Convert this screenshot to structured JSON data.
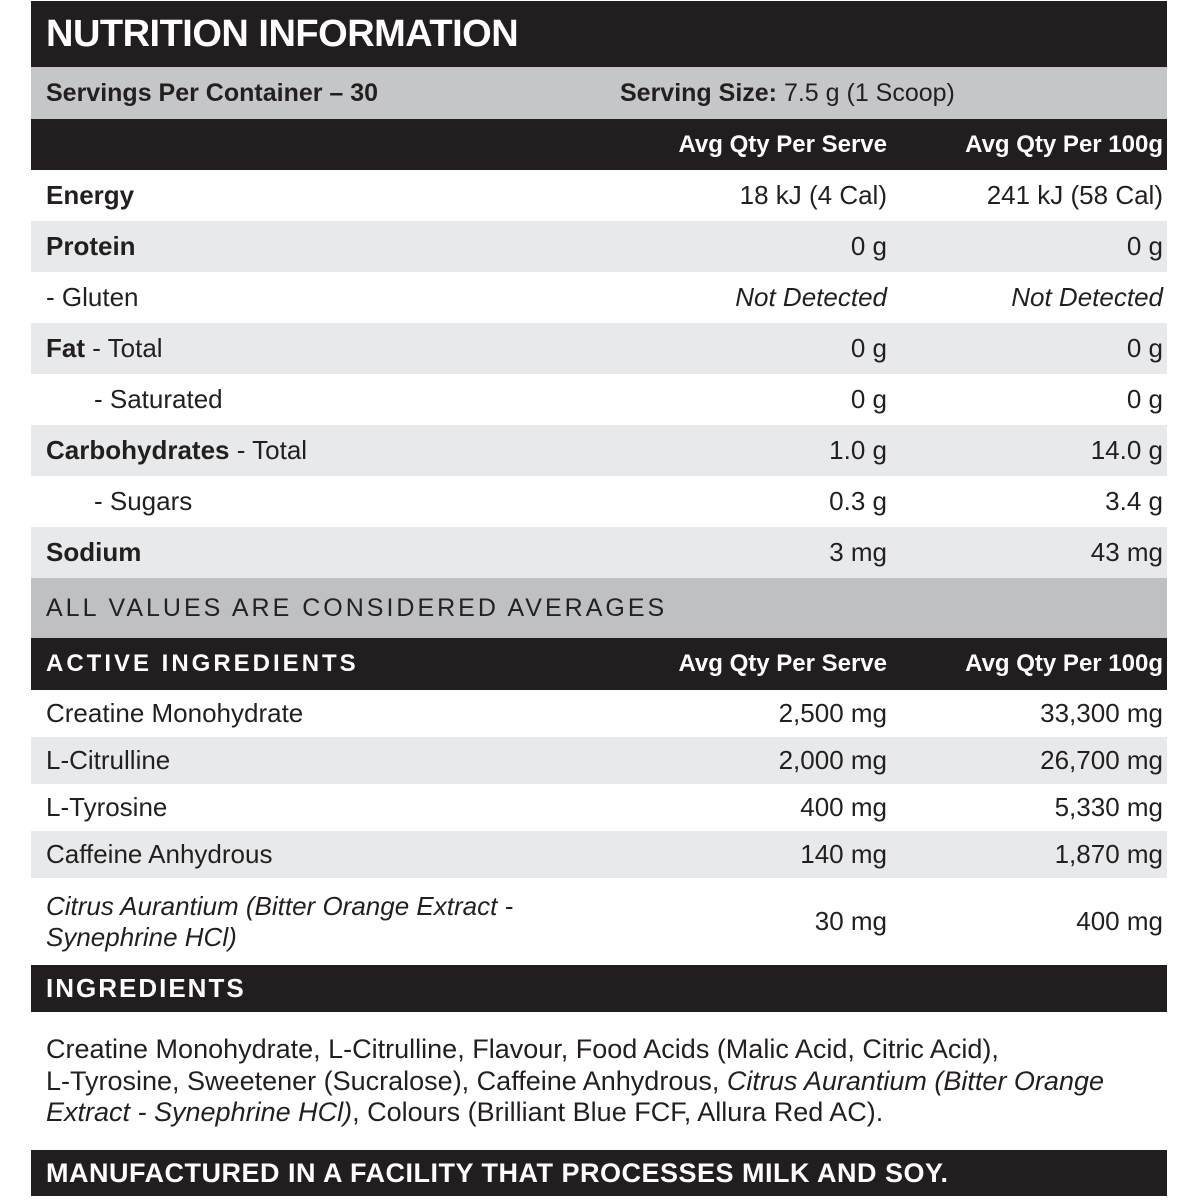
{
  "title": "NUTRITION INFORMATION",
  "servings": {
    "per_container": "Servings Per Container – 30",
    "size_label": "Serving Size:",
    "size_value": " 7.5 g (1 Scoop)"
  },
  "columns": {
    "serve": "Avg Qty Per Serve",
    "per100g": "Avg Qty Per 100g"
  },
  "nutrition": {
    "rows": [
      {
        "bold": "Energy",
        "rest": "",
        "serve": "18 kJ (4 Cal)",
        "per100g": "241 kJ (58 Cal)"
      },
      {
        "bold": "Protein",
        "rest": "",
        "serve": "0 g",
        "per100g": "0 g"
      },
      {
        "bold": "",
        "rest": "- Gluten",
        "serve": "Not Detected",
        "per100g": "Not Detected"
      },
      {
        "bold": "Fat",
        "rest": " - Total",
        "serve": "0 g",
        "per100g": "0 g"
      },
      {
        "bold": "",
        "rest": "- Saturated",
        "serve": "0 g",
        "per100g": "0 g"
      },
      {
        "bold": "Carbohydrates",
        "rest": " - Total",
        "serve": "1.0 g",
        "per100g": "14.0 g"
      },
      {
        "bold": "",
        "rest": "- Sugars",
        "serve": "0.3 g",
        "per100g": "3.4 g"
      },
      {
        "bold": "Sodium",
        "rest": "",
        "serve": "3 mg",
        "per100g": "43 mg"
      }
    ]
  },
  "averages_note": "ALL VALUES ARE CONSIDERED AVERAGES",
  "active": {
    "header": "ACTIVE INGREDIENTS",
    "rows": [
      {
        "name": "Creatine Monohydrate",
        "serve": "2,500 mg",
        "per100g": "33,300 mg"
      },
      {
        "name": "L-Citrulline",
        "serve": "2,000 mg",
        "per100g": "26,700 mg"
      },
      {
        "name": "L-Tyrosine",
        "serve": "400 mg",
        "per100g": "5,330 mg"
      },
      {
        "name": "Caffeine Anhydrous",
        "serve": "140 mg",
        "per100g": "1,870 mg"
      },
      {
        "name": "Citrus Aurantium (Bitter Orange Extract - Synephrine HCl)",
        "serve": "30 mg",
        "per100g": "400 mg"
      }
    ]
  },
  "ingredients": {
    "header": "INGREDIENTS",
    "line1": "Creatine Monohydrate, L-Citrulline, Flavour, Food Acids (Malic Acid, Citric Acid),",
    "line2_plain": "L-Tyrosine, Sweetener (Sucralose), Caffeine Anhydrous, ",
    "line2_italic": "Citrus Aurantium (Bitter Orange",
    "line3_italic": "Extract - Synephrine HCl)",
    "line3_plain": ", Colours (Brilliant Blue FCF, Allura Red AC)."
  },
  "footer": "MANUFACTURED IN A FACILITY THAT PROCESSES MILK AND SOY.",
  "colors": {
    "bar_black": "#221e1f",
    "servings_gray": "#c5c6c8",
    "row_stripe": "#e8e9eb",
    "note_gray": "#bfc0c2",
    "text": "#231f20"
  }
}
